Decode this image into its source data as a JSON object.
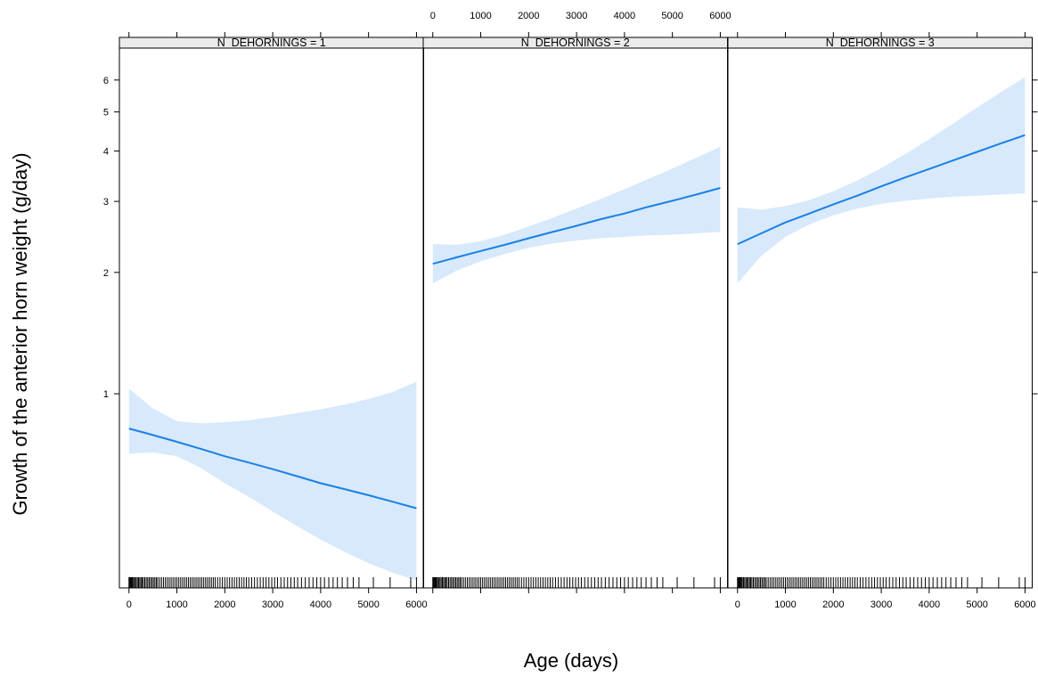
{
  "chart_data": {
    "type": "line",
    "layout": "trellis 3 panels side by side, shared y axis",
    "xlabel": "Age (days)",
    "ylabel": "Growth of the anterior horn weight (g/day)",
    "x_ticks": [
      0,
      1000,
      2000,
      3000,
      4000,
      5000,
      6000
    ],
    "y_ticks": [
      1,
      2,
      3,
      4,
      5,
      6
    ],
    "y_scale": "log",
    "xlim": [
      -200,
      6150
    ],
    "ylim": [
      0.33,
      7.2
    ],
    "line_color": "#1a80e6",
    "band_color": "#d7e9fb",
    "panels": [
      {
        "strip": "N_DEHORNINGS = 1",
        "x": [
          0,
          500,
          1000,
          1500,
          2000,
          2500,
          3000,
          3500,
          4000,
          4500,
          5000,
          5500,
          6000
        ],
        "fit": [
          0.82,
          0.79,
          0.76,
          0.73,
          0.7,
          0.675,
          0.65,
          0.625,
          0.6,
          0.58,
          0.56,
          0.54,
          0.52
        ],
        "lower": [
          0.71,
          0.715,
          0.7,
          0.655,
          0.6,
          0.555,
          0.51,
          0.47,
          0.435,
          0.405,
          0.38,
          0.36,
          0.345
        ],
        "upper": [
          1.03,
          0.92,
          0.855,
          0.845,
          0.85,
          0.86,
          0.875,
          0.895,
          0.915,
          0.94,
          0.97,
          1.01,
          1.07
        ]
      },
      {
        "strip": "N_DEHORNINGS = 2",
        "x": [
          0,
          500,
          1000,
          1500,
          2000,
          2500,
          3000,
          3500,
          4000,
          4500,
          5000,
          5500,
          6000
        ],
        "fit": [
          2.1,
          2.18,
          2.26,
          2.34,
          2.43,
          2.52,
          2.61,
          2.71,
          2.8,
          2.91,
          3.01,
          3.12,
          3.24
        ],
        "lower": [
          1.88,
          2.02,
          2.13,
          2.22,
          2.3,
          2.36,
          2.4,
          2.43,
          2.45,
          2.47,
          2.48,
          2.5,
          2.52
        ],
        "upper": [
          2.35,
          2.34,
          2.39,
          2.48,
          2.6,
          2.73,
          2.88,
          3.04,
          3.22,
          3.41,
          3.62,
          3.85,
          4.1
        ]
      },
      {
        "strip": "N_DEHORNINGS = 3",
        "x": [
          0,
          500,
          1000,
          1500,
          2000,
          2500,
          3000,
          3500,
          4000,
          4500,
          5000,
          5500,
          6000
        ],
        "fit": [
          2.35,
          2.5,
          2.66,
          2.8,
          2.95,
          3.1,
          3.27,
          3.44,
          3.61,
          3.79,
          3.98,
          4.18,
          4.38
        ],
        "lower": [
          1.88,
          2.2,
          2.45,
          2.63,
          2.77,
          2.88,
          2.96,
          3.01,
          3.05,
          3.08,
          3.1,
          3.12,
          3.14
        ],
        "upper": [
          2.9,
          2.86,
          2.92,
          3.02,
          3.18,
          3.38,
          3.63,
          3.93,
          4.28,
          4.68,
          5.13,
          5.6,
          6.1
        ]
      }
    ],
    "rug_x": [
      0,
      15,
      30,
      45,
      60,
      80,
      100,
      125,
      150,
      175,
      200,
      225,
      250,
      275,
      300,
      330,
      360,
      390,
      420,
      450,
      480,
      510,
      540,
      570,
      600,
      640,
      680,
      720,
      760,
      800,
      840,
      880,
      920,
      960,
      1000,
      1040,
      1080,
      1120,
      1160,
      1200,
      1240,
      1280,
      1320,
      1360,
      1400,
      1440,
      1480,
      1520,
      1560,
      1600,
      1640,
      1680,
      1720,
      1760,
      1800,
      1850,
      1900,
      1950,
      2000,
      2050,
      2100,
      2150,
      2200,
      2250,
      2300,
      2350,
      2400,
      2450,
      2500,
      2560,
      2620,
      2680,
      2740,
      2800,
      2860,
      2920,
      2980,
      3040,
      3100,
      3170,
      3240,
      3310,
      3380,
      3450,
      3520,
      3600,
      3680,
      3760,
      3840,
      3920,
      4000,
      4080,
      4170,
      4260,
      4350,
      4450,
      4560,
      4680,
      4800,
      5100,
      5450,
      5880,
      6000
    ]
  }
}
